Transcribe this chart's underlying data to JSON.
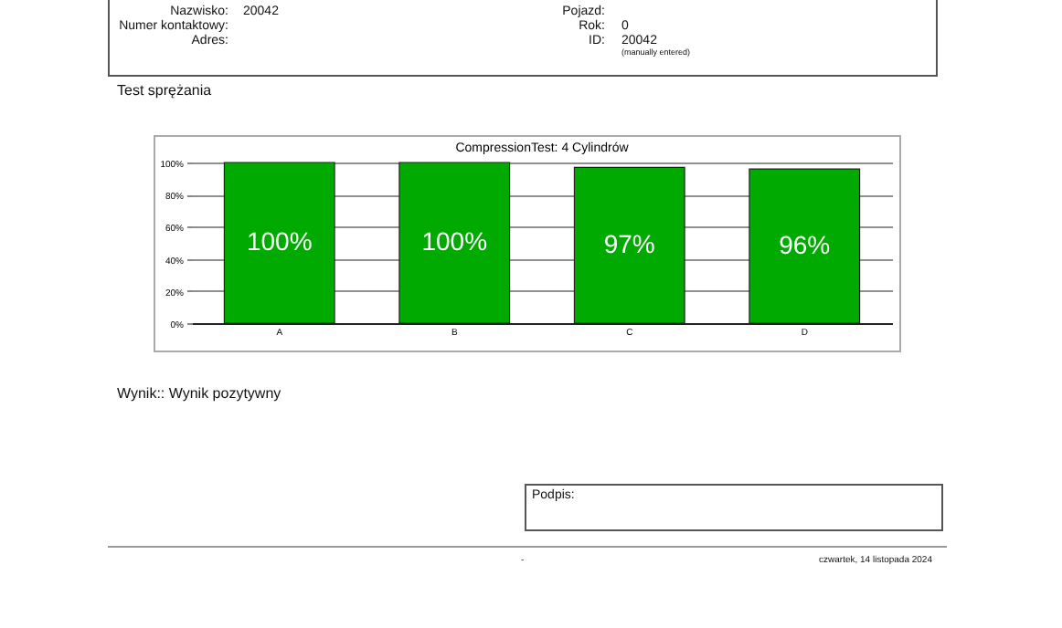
{
  "chart_data": {
    "type": "bar",
    "title": "CompressionTest: 4 Cylindrów",
    "categories": [
      "A",
      "B",
      "C",
      "D"
    ],
    "values": [
      100,
      100,
      97,
      96
    ],
    "value_labels": [
      "100%",
      "100%",
      "97%",
      "96%"
    ],
    "color": "#00aa00",
    "ylim": [
      0,
      100
    ],
    "yticks": [
      {
        "value": 0,
        "label": "0%"
      },
      {
        "value": 20,
        "label": "20%"
      },
      {
        "value": 40,
        "label": "40%"
      },
      {
        "value": 60,
        "label": "60%"
      },
      {
        "value": 80,
        "label": "80%"
      },
      {
        "value": 100,
        "label": "100%"
      }
    ],
    "grid": "y",
    "annotations": [
      "Nazwisko:",
      "20042",
      "Numer kontaktowy:",
      "Adres:",
      "Pojazd:",
      "Rok:",
      "0",
      "ID:",
      "20042",
      "(manually entered)",
      "Test sprężania",
      "Wynik:: Wynik pozytywny",
      "Podpis:",
      "-",
      "czwartek, 14 listopada 2024"
    ]
  }
}
